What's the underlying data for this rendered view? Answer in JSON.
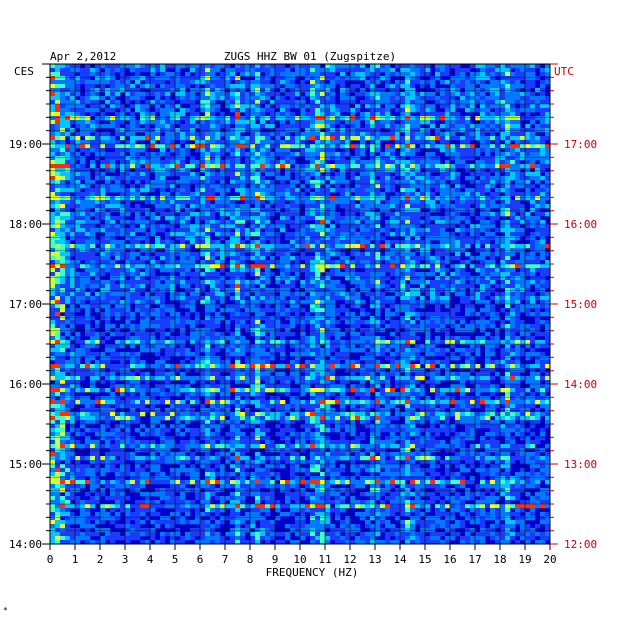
{
  "chart_data": {
    "type": "heatmap",
    "date": "Apr 2,2012",
    "title": "ZUGS HHZ BW 01 (Zugspitze)",
    "xlabel": "FREQUENCY (HZ)",
    "x_ticks": [
      "0",
      "1",
      "2",
      "3",
      "4",
      "5",
      "6",
      "7",
      "8",
      "9",
      "10",
      "11",
      "12",
      "13",
      "14",
      "15",
      "16",
      "17",
      "18",
      "19",
      "20"
    ],
    "xlim": [
      0,
      20
    ],
    "left_axis_label": "CES",
    "right_axis_label": "UTC",
    "left_time_ticks": [
      {
        "label": "19:00",
        "hours_from_bottom": 5
      },
      {
        "label": "18:00",
        "hours_from_bottom": 4
      },
      {
        "label": "17:00",
        "hours_from_bottom": 3
      },
      {
        "label": "16:00",
        "hours_from_bottom": 2
      },
      {
        "label": "15:00",
        "hours_from_bottom": 1
      },
      {
        "label": "14:00",
        "hours_from_bottom": 0
      }
    ],
    "right_time_ticks": [
      {
        "label": "17:00",
        "hours_from_bottom": 5
      },
      {
        "label": "16:00",
        "hours_from_bottom": 4
      },
      {
        "label": "15:00",
        "hours_from_bottom": 3
      },
      {
        "label": "14:00",
        "hours_from_bottom": 2
      },
      {
        "label": "13:00",
        "hours_from_bottom": 1
      },
      {
        "label": "12:00",
        "hours_from_bottom": 0
      }
    ],
    "time_span_hours": 6,
    "grid": true,
    "colors": {
      "background": "#0000c8",
      "low": "#1e3cff",
      "mid": "#00c8ff",
      "high": "#ffff00",
      "peak": "#ff0000",
      "left_axis": "#000000",
      "right_axis": "#cc0000"
    },
    "notable_bands_hz": [
      0.3,
      6.2,
      7.4,
      8.2,
      10.5,
      10.8,
      12.9,
      14.2,
      18.2
    ]
  },
  "footer_mark": "*"
}
